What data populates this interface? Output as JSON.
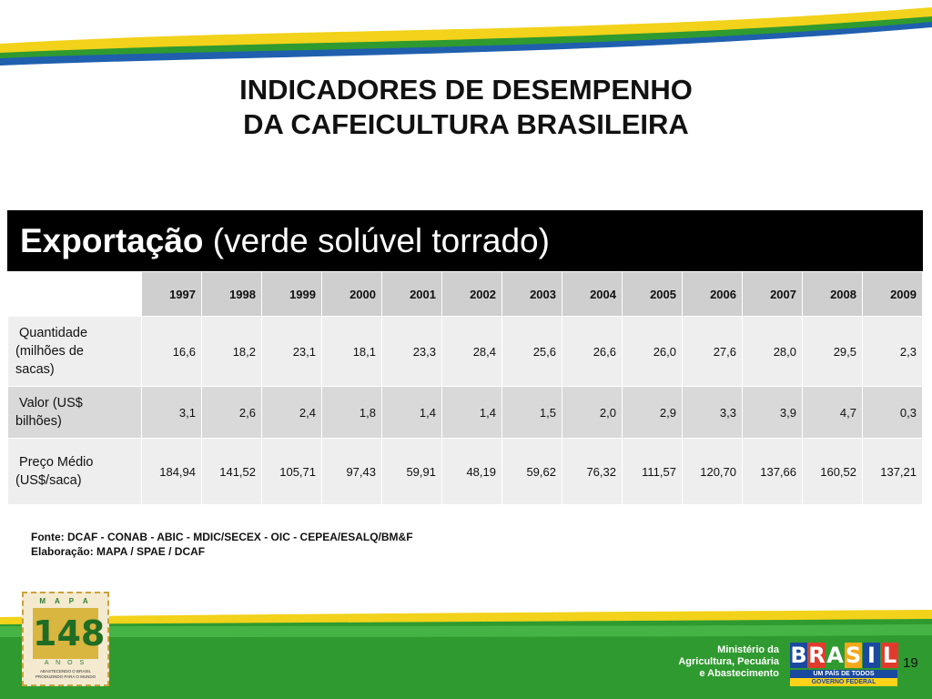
{
  "header": {
    "title_line1": "INDICADORES DE DESEMPENHO",
    "title_line2": "DA CAFEICULTURA BRASILEIRA"
  },
  "banner": {
    "bold_text": "Exportação",
    "normal_text": "(verde solúvel torrado)"
  },
  "table": {
    "years": [
      "1997",
      "1998",
      "1999",
      "2000",
      "2001",
      "2002",
      "2003",
      "2004",
      "2005",
      "2006",
      "2007",
      "2008",
      "2009"
    ],
    "rows": [
      {
        "label_lines": [
          " Quantidade",
          "(milhões de",
          "sacas)"
        ],
        "values": [
          "16,6",
          "18,2",
          "23,1",
          "18,1",
          "23,3",
          "28,4",
          "25,6",
          "26,6",
          "26,0",
          "27,6",
          "28,0",
          "29,5",
          "2,3"
        ]
      },
      {
        "label_lines": [
          " Valor (US$",
          "bilhões)"
        ],
        "values": [
          "3,1",
          "2,6",
          "2,4",
          "1,8",
          "1,4",
          "1,4",
          "1,5",
          "2,0",
          "2,9",
          "3,3",
          "3,9",
          "4,7",
          "0,3"
        ]
      },
      {
        "label_lines": [
          " Preço Médio",
          "(US$/saca)"
        ],
        "values": [
          "184,94",
          "141,52",
          "105,71",
          "97,43",
          "59,91",
          "48,19",
          "59,62",
          "76,32",
          "111,57",
          "120,70",
          "137,66",
          "160,52",
          "137,21"
        ]
      }
    ]
  },
  "source": {
    "line1": "Fonte: DCAF - CONAB - ABIC - MDIC/SECEX - OIC - CEPEA/ESALQ/BM&F",
    "line2": "Elaboração: MAPA / SPAE / DCAF"
  },
  "footer": {
    "logo148": {
      "top": "M A P A",
      "number": "148",
      "bottom": "A N O S",
      "tagline": "ABASTECENDO O BRASIL PRODUZINDO PARA O MUNDO"
    },
    "ministry_lines": [
      "Ministério da",
      "Agricultura, Pecuária",
      "e Abastecimento"
    ],
    "brasil_letters": [
      "B",
      "R",
      "A",
      "S",
      "I",
      "L"
    ],
    "brasil_slogan": "UM PAÍS DE TODOS",
    "brasil_gov": "GOVERNO FEDERAL",
    "page_number": "19"
  },
  "colors": {
    "banner_bg": "#000000",
    "header_row_bg": "#cfcfcf",
    "row_light_bg": "#eeeeee",
    "row_dark_bg": "#d9d9d9",
    "green_band": "#2f9a2f",
    "yellow_band": "#f2d21a",
    "blue_swoosh": "#1f5fae"
  }
}
